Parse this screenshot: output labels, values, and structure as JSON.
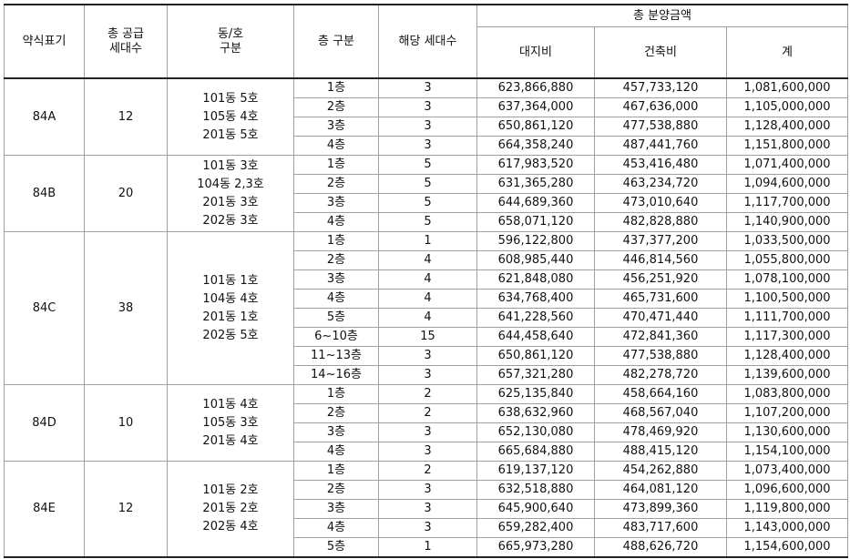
{
  "header": {
    "label": "약식표기",
    "supply": [
      "총 공급",
      "세대수"
    ],
    "dongho": [
      "동/호",
      "구분"
    ],
    "floor": "층 구분",
    "units": "해당 세대수",
    "total": "총 분양금액",
    "land": "대지비",
    "building": "건축비",
    "sum": "계"
  },
  "groups": [
    {
      "type": "84A",
      "supply": "12",
      "dongho": [
        "101동 5호",
        "105동 4호",
        "201동 5호"
      ],
      "rows": [
        [
          "1층",
          "3",
          "623,866,880",
          "457,733,120",
          "1,081,600,000"
        ],
        [
          "2층",
          "3",
          "637,364,000",
          "467,636,000",
          "1,105,000,000"
        ],
        [
          "3층",
          "3",
          "650,861,120",
          "477,538,880",
          "1,128,400,000"
        ],
        [
          "4층",
          "3",
          "664,358,240",
          "487,441,760",
          "1,151,800,000"
        ]
      ]
    },
    {
      "type": "84B",
      "supply": "20",
      "dongho": [
        "101동 3호",
        "104동 2,3호",
        "201동 3호",
        "202동 3호"
      ],
      "rows": [
        [
          "1층",
          "5",
          "617,983,520",
          "453,416,480",
          "1,071,400,000"
        ],
        [
          "2층",
          "5",
          "631,365,280",
          "463,234,720",
          "1,094,600,000"
        ],
        [
          "3층",
          "5",
          "644,689,360",
          "473,010,640",
          "1,117,700,000"
        ],
        [
          "4층",
          "5",
          "658,071,120",
          "482,828,880",
          "1,140,900,000"
        ]
      ]
    },
    {
      "type": "84C",
      "supply": "38",
      "dongho": [
        "101동 1호",
        "104동 4호",
        "201동 1호",
        "202동 5호"
      ],
      "rows": [
        [
          "1층",
          "1",
          "596,122,800",
          "437,377,200",
          "1,033,500,000"
        ],
        [
          "2층",
          "4",
          "608,985,440",
          "446,814,560",
          "1,055,800,000"
        ],
        [
          "3층",
          "4",
          "621,848,080",
          "456,251,920",
          "1,078,100,000"
        ],
        [
          "4층",
          "4",
          "634,768,400",
          "465,731,600",
          "1,100,500,000"
        ],
        [
          "5층",
          "4",
          "641,228,560",
          "470,471,440",
          "1,111,700,000"
        ],
        [
          "6~10층",
          "15",
          "644,458,640",
          "472,841,360",
          "1,117,300,000"
        ],
        [
          "11~13층",
          "3",
          "650,861,120",
          "477,538,880",
          "1,128,400,000"
        ],
        [
          "14~16층",
          "3",
          "657,321,280",
          "482,278,720",
          "1,139,600,000"
        ]
      ]
    },
    {
      "type": "84D",
      "supply": "10",
      "dongho": [
        "101동 4호",
        "105동 3호",
        "201동 4호"
      ],
      "rows": [
        [
          "1층",
          "2",
          "625,135,840",
          "458,664,160",
          "1,083,800,000"
        ],
        [
          "2층",
          "2",
          "638,632,960",
          "468,567,040",
          "1,107,200,000"
        ],
        [
          "3층",
          "3",
          "652,130,080",
          "478,469,920",
          "1,130,600,000"
        ],
        [
          "4층",
          "3",
          "665,684,880",
          "488,415,120",
          "1,154,100,000"
        ]
      ]
    },
    {
      "type": "84E",
      "supply": "12",
      "dongho": [
        "101동 2호",
        "201동 2호",
        "202동 4호"
      ],
      "rows": [
        [
          "1층",
          "2",
          "619,137,120",
          "454,262,880",
          "1,073,400,000"
        ],
        [
          "2층",
          "3",
          "632,518,880",
          "464,081,120",
          "1,096,600,000"
        ],
        [
          "3층",
          "3",
          "645,900,640",
          "473,899,360",
          "1,119,800,000"
        ],
        [
          "4층",
          "3",
          "659,282,400",
          "483,717,600",
          "1,143,000,000"
        ],
        [
          "5층",
          "1",
          "665,973,280",
          "488,626,720",
          "1,154,600,000"
        ]
      ]
    }
  ]
}
